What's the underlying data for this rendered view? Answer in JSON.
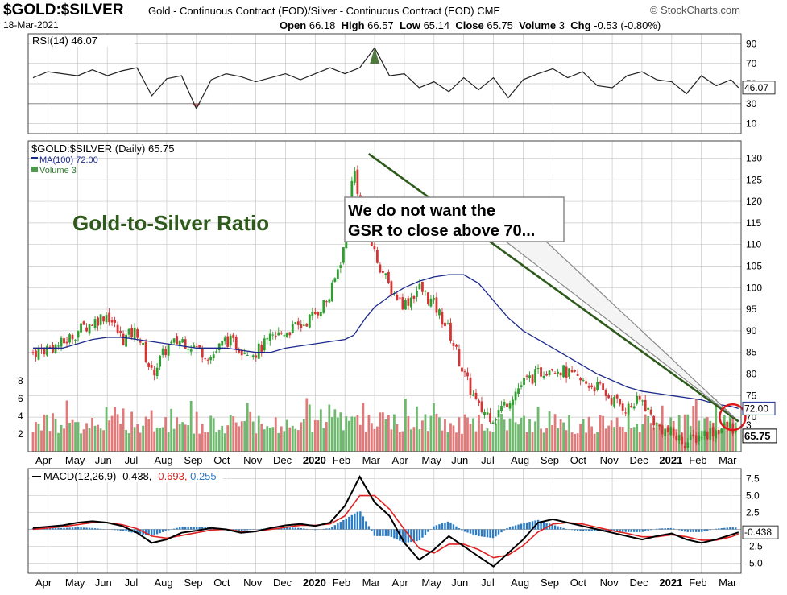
{
  "header": {
    "symbol": "$GOLD:$SILVER",
    "description": "Gold - Continuous Contract (EOD)/Silver - Continuous Contract (EOD)",
    "exchange": "CME",
    "logo": "© StockCharts.com",
    "date": "18-Mar-2021",
    "open_label": "Open",
    "open": "66.18",
    "high_label": "High",
    "high": "66.57",
    "low_label": "Low",
    "low": "65.14",
    "close_label": "Close",
    "close": "65.75",
    "volume_label": "Volume",
    "volume": "3",
    "chg_label": "Chg",
    "chg": "-0.53 (-0.80%)"
  },
  "colors": {
    "up": "#2e9e2e",
    "down": "#d43434",
    "ma": "#1c2a8c",
    "rsi_line": "#222222",
    "rsi_fill": "#4f7a3c",
    "macd_line": "#000000",
    "signal_line": "#e02020",
    "hist": "#2a7bc4",
    "trend": "#2e5a1c",
    "panel_bg": "#e8e8dc",
    "grid": "#c8c8c8",
    "callout": "#8a8a8a"
  },
  "chart_data": [
    {
      "type": "line",
      "panel": "rsi",
      "legend": "RSI(14) 46.07",
      "y_ticks": [
        10,
        30,
        50,
        70,
        90
      ],
      "ylim": [
        0,
        100
      ],
      "reference_lines": [
        30,
        70
      ],
      "last_value_label": "46.07",
      "x_month_index": [
        0,
        0.5,
        1,
        1.5,
        2,
        2.5,
        3,
        3.5,
        4,
        4.5,
        5,
        5.5,
        6,
        6.5,
        7,
        7.5,
        8,
        8.5,
        9,
        9.5,
        10,
        10.5,
        11,
        11.5,
        12,
        12.5,
        13,
        13.5,
        14,
        14.5,
        15,
        15.5,
        16,
        16.5,
        17,
        17.5,
        18,
        18.5,
        19,
        19.5,
        20,
        20.5,
        21,
        21.5,
        22,
        22.5,
        23,
        23.5,
        23.75
      ],
      "values": [
        56,
        62,
        60,
        58,
        64,
        58,
        63,
        66,
        38,
        55,
        58,
        25,
        54,
        60,
        57,
        52,
        56,
        60,
        54,
        60,
        66,
        60,
        66,
        86,
        58,
        60,
        46,
        52,
        42,
        56,
        44,
        56,
        36,
        54,
        60,
        65,
        56,
        62,
        48,
        46,
        58,
        62,
        54,
        52,
        40,
        58,
        48,
        54,
        46
      ]
    },
    {
      "type": "candlestick",
      "panel": "price",
      "legend": [
        "$GOLD:$SILVER (Daily) 65.75",
        "MA(100) 72.00",
        "Volume 3"
      ],
      "annotation_title": "Gold-to-Silver Ratio",
      "callout": "We do not want the GSR to close above 70...",
      "y_ticks": [
        65,
        70,
        75,
        80,
        85,
        90,
        95,
        100,
        105,
        110,
        115,
        120,
        125,
        130
      ],
      "ylim": [
        62,
        134
      ],
      "ma_last_label": "72.00",
      "close_last_label": "65.75",
      "x_month_index": [
        0,
        0.5,
        1,
        1.5,
        2,
        2.5,
        3,
        3.5,
        4,
        4.5,
        5,
        5.5,
        6,
        6.5,
        7,
        7.5,
        8,
        8.5,
        9,
        9.5,
        10,
        10.5,
        10.8,
        11,
        11.2,
        11.5,
        12,
        12.5,
        13,
        13.5,
        14,
        14.5,
        15,
        15.5,
        16,
        16.5,
        17,
        17.5,
        18,
        18.5,
        19,
        19.5,
        20,
        20.5,
        21,
        21.5,
        22,
        22.5,
        23,
        23.5,
        23.75
      ],
      "close": [
        85,
        86,
        87,
        90,
        92,
        94,
        88,
        90,
        80,
        86,
        88,
        86,
        84,
        88,
        86,
        85,
        88,
        90,
        91,
        94,
        98,
        110,
        128,
        120,
        115,
        108,
        100,
        96,
        100,
        96,
        90,
        80,
        72,
        70,
        74,
        78,
        80,
        82,
        80,
        78,
        77,
        74,
        72,
        74,
        68,
        66,
        64,
        66,
        67,
        68,
        65.75
      ],
      "ma100": [
        86,
        86,
        86,
        87,
        88,
        88.5,
        88.5,
        88,
        87.5,
        87,
        86.5,
        86,
        86,
        86,
        85.5,
        85,
        85,
        86,
        86.5,
        87,
        87.5,
        88,
        89,
        91,
        93,
        95.5,
        98,
        100,
        101.5,
        102.5,
        103,
        103,
        101,
        97,
        93,
        90,
        88,
        86,
        84,
        82,
        80,
        78.5,
        77,
        76,
        75.5,
        75,
        74.5,
        74,
        73,
        72.5,
        72
      ],
      "trendline": {
        "x_month_index": [
          11.3,
          23.75
        ],
        "values": [
          131,
          69
        ]
      },
      "volume_ticks": [
        2,
        4,
        6,
        8
      ],
      "volume_last_label": "3"
    },
    {
      "type": "line",
      "panel": "macd",
      "legend_label": "MACD(12,26,9)",
      "legend_values": [
        "-0.438",
        "-0.693",
        "0.255"
      ],
      "y_ticks": [
        -5.0,
        -2.5,
        0.0,
        2.5,
        5.0,
        7.5
      ],
      "ylim": [
        -6.5,
        9
      ],
      "last_value_label": "-0.438",
      "x_month_index": [
        0,
        0.5,
        1,
        1.5,
        2,
        2.5,
        3,
        3.5,
        4,
        4.5,
        5,
        5.5,
        6,
        6.5,
        7,
        7.5,
        8,
        8.5,
        9,
        9.5,
        10,
        10.5,
        11,
        11.5,
        12,
        12.5,
        13,
        13.5,
        14,
        14.5,
        15,
        15.5,
        16,
        16.5,
        17,
        17.5,
        18,
        18.5,
        19,
        19.5,
        20,
        20.5,
        21,
        21.5,
        22,
        22.5,
        23,
        23.5,
        23.75
      ],
      "macd": [
        0.2,
        0.4,
        0.6,
        1.0,
        1.2,
        1.0,
        0.5,
        -0.5,
        -2.0,
        -1.5,
        -0.5,
        -0.2,
        0.2,
        0.0,
        -0.5,
        -0.3,
        0.2,
        0.6,
        0.8,
        0.5,
        1.0,
        3.5,
        7.8,
        4.0,
        2.0,
        -2.0,
        -4.5,
        -3.0,
        -1.0,
        -2.5,
        -4.0,
        -5.5,
        -3.5,
        -1.5,
        1.0,
        1.5,
        1.0,
        0.5,
        0.0,
        -0.5,
        -1.0,
        -1.5,
        -1.0,
        -0.6,
        -1.5,
        -2.0,
        -1.5,
        -0.8,
        -0.438
      ],
      "signal": [
        0.0,
        0.2,
        0.4,
        0.7,
        1.0,
        1.0,
        0.7,
        0.1,
        -1.0,
        -1.3,
        -0.9,
        -0.5,
        -0.1,
        0.0,
        -0.3,
        -0.3,
        0.0,
        0.3,
        0.6,
        0.6,
        0.8,
        2.0,
        5.0,
        5.0,
        3.0,
        0.0,
        -2.8,
        -3.5,
        -2.2,
        -2.2,
        -3.0,
        -4.2,
        -3.8,
        -2.4,
        -0.4,
        0.8,
        1.0,
        0.8,
        0.3,
        -0.2,
        -0.6,
        -1.1,
        -1.1,
        -0.8,
        -1.1,
        -1.6,
        -1.6,
        -1.1,
        -0.693
      ],
      "histogram": [
        0.2,
        0.2,
        0.2,
        0.3,
        0.2,
        0.0,
        -0.2,
        -0.6,
        -1.0,
        -0.2,
        0.4,
        0.3,
        0.3,
        0.0,
        -0.2,
        0.0,
        0.2,
        0.3,
        0.2,
        -0.1,
        0.2,
        1.5,
        2.8,
        -1.0,
        -1.0,
        -2.0,
        -1.7,
        0.5,
        1.2,
        -0.3,
        -1.0,
        -1.3,
        0.3,
        0.9,
        1.4,
        0.7,
        0.0,
        -0.3,
        -0.3,
        -0.3,
        -0.4,
        -0.4,
        0.1,
        0.2,
        -0.4,
        -0.4,
        0.1,
        0.3,
        0.255
      ]
    }
  ],
  "x_axis": {
    "labels": [
      "Apr",
      "May",
      "Jun",
      "Jul",
      "Aug",
      "Sep",
      "Oct",
      "Nov",
      "Dec",
      "2020",
      "Feb",
      "Mar",
      "Apr",
      "May",
      "Jun",
      "Jul",
      "Aug",
      "Sep",
      "Oct",
      "Nov",
      "Dec",
      "2021",
      "Feb",
      "Mar"
    ],
    "bold_labels": [
      "2020",
      "2021"
    ]
  }
}
